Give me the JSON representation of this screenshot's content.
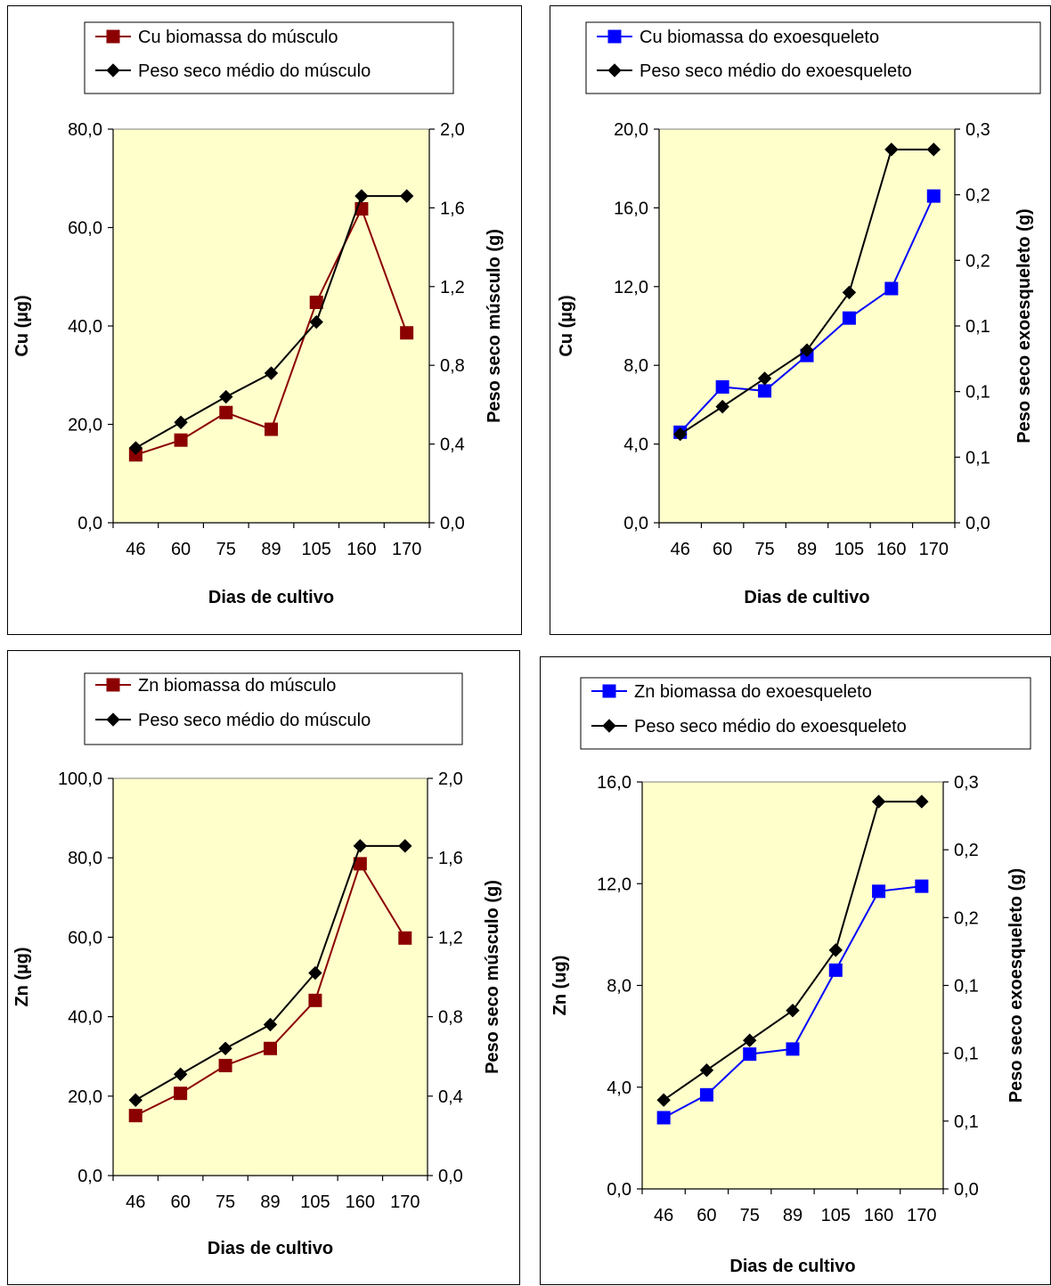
{
  "chart_data": [
    {
      "type": "line",
      "title": "",
      "categories": [
        "46",
        "60",
        "75",
        "89",
        "105",
        "160",
        "170"
      ],
      "xlabel": "Dias de cultivo",
      "ylabel": "Cu (µg)",
      "y2label": "Peso seco músculo (g)",
      "ylim": [
        0,
        80
      ],
      "y2lim": [
        0,
        2
      ],
      "yticks": [
        "0,0",
        "20,0",
        "40,0",
        "60,0",
        "80,0"
      ],
      "y2ticks": [
        "0,0",
        "0,4",
        "0,8",
        "1,2",
        "1,6",
        "2,0"
      ],
      "legend_position": "top",
      "series": [
        {
          "name": "Cu biomassa do músculo",
          "axis": "left",
          "color": "#8b0000",
          "marker": "square",
          "values": [
            13.8,
            16.8,
            22.4,
            19.0,
            44.8,
            63.8,
            38.6
          ]
        },
        {
          "name": "Peso seco médio do músculo",
          "axis": "right",
          "color": "#000000",
          "marker": "diamond",
          "values": [
            0.38,
            0.51,
            0.64,
            0.76,
            1.02,
            1.66,
            1.66
          ]
        }
      ]
    },
    {
      "type": "line",
      "title": "",
      "categories": [
        "46",
        "60",
        "75",
        "89",
        "105",
        "160",
        "170"
      ],
      "xlabel": "Dias de cultivo",
      "ylabel": "Cu (µg)",
      "y2label": "Peso seco exoesqueleto (g)",
      "ylim": [
        0,
        20
      ],
      "y2lim": [
        0,
        0.3
      ],
      "yticks": [
        "0,0",
        "4,0",
        "8,0",
        "12,0",
        "16,0",
        "20,0"
      ],
      "y2ticks": [
        "0,0",
        "0,1",
        "0,1",
        "0,1",
        "0,2",
        "0,2",
        "0,3"
      ],
      "legend_position": "top",
      "series": [
        {
          "name": "Cu biomassa do exoesqueleto",
          "axis": "left",
          "color": "#0000ff",
          "marker": "square",
          "values": [
            4.6,
            6.9,
            6.7,
            8.5,
            10.4,
            11.9,
            16.6
          ]
        },
        {
          "name": "Peso seco médio do exoesqueleto",
          "axis": "right",
          "color": "#000000",
          "marker": "diamond",
          "values": [
            0.0675,
            0.0885,
            0.11,
            0.1315,
            0.1755,
            0.2845,
            0.2845
          ]
        }
      ]
    },
    {
      "type": "line",
      "title": "",
      "categories": [
        "46",
        "60",
        "75",
        "89",
        "105",
        "160",
        "170"
      ],
      "xlabel": "Dias de cultivo",
      "ylabel": "Zn (µg)",
      "y2label": "Peso seco músculo (g)",
      "ylim": [
        0,
        100
      ],
      "y2lim": [
        0,
        2
      ],
      "yticks": [
        "0,0",
        "20,0",
        "40,0",
        "60,0",
        "80,0",
        "100,0"
      ],
      "y2ticks": [
        "0,0",
        "0,4",
        "0,8",
        "1,2",
        "1,6",
        "2,0"
      ],
      "legend_position": "top",
      "series": [
        {
          "name": "Zn biomassa do músculo",
          "axis": "left",
          "color": "#8b0000",
          "marker": "square",
          "values": [
            15.1,
            20.7,
            27.7,
            32.0,
            44.1,
            78.5,
            59.8
          ]
        },
        {
          "name": "Peso seco médio do músculo",
          "axis": "right",
          "color": "#000000",
          "marker": "diamond",
          "values": [
            0.38,
            0.51,
            0.64,
            0.76,
            1.02,
            1.66,
            1.66
          ]
        }
      ]
    },
    {
      "type": "line",
      "title": "",
      "categories": [
        "46",
        "60",
        "75",
        "89",
        "105",
        "160",
        "170"
      ],
      "xlabel": "Dias de cultivo",
      "ylabel": "Zn (ug)",
      "y2label": "Peso seco exoesqueleto (g)",
      "ylim": [
        0,
        16
      ],
      "y2lim": [
        0,
        0.3
      ],
      "yticks": [
        "0,0",
        "4,0",
        "8,0",
        "12,0",
        "16,0"
      ],
      "y2ticks": [
        "0,0",
        "0,1",
        "0,1",
        "0,1",
        "0,2",
        "0,2",
        "0,3"
      ],
      "legend_position": "top",
      "series": [
        {
          "name": "Zn biomassa do exoesqueleto",
          "axis": "left",
          "color": "#0000ff",
          "marker": "square",
          "values": [
            2.8,
            3.7,
            5.3,
            5.5,
            8.6,
            11.7,
            11.9
          ]
        },
        {
          "name": "Peso seco médio do exoesqueleto",
          "axis": "right",
          "color": "#000000",
          "marker": "diamond",
          "values": [
            0.0655,
            0.0875,
            0.1095,
            0.1315,
            0.176,
            0.2855,
            0.2855
          ]
        }
      ]
    }
  ],
  "colors": {
    "plot_background": "#ffffcc",
    "frame": "#000000"
  }
}
